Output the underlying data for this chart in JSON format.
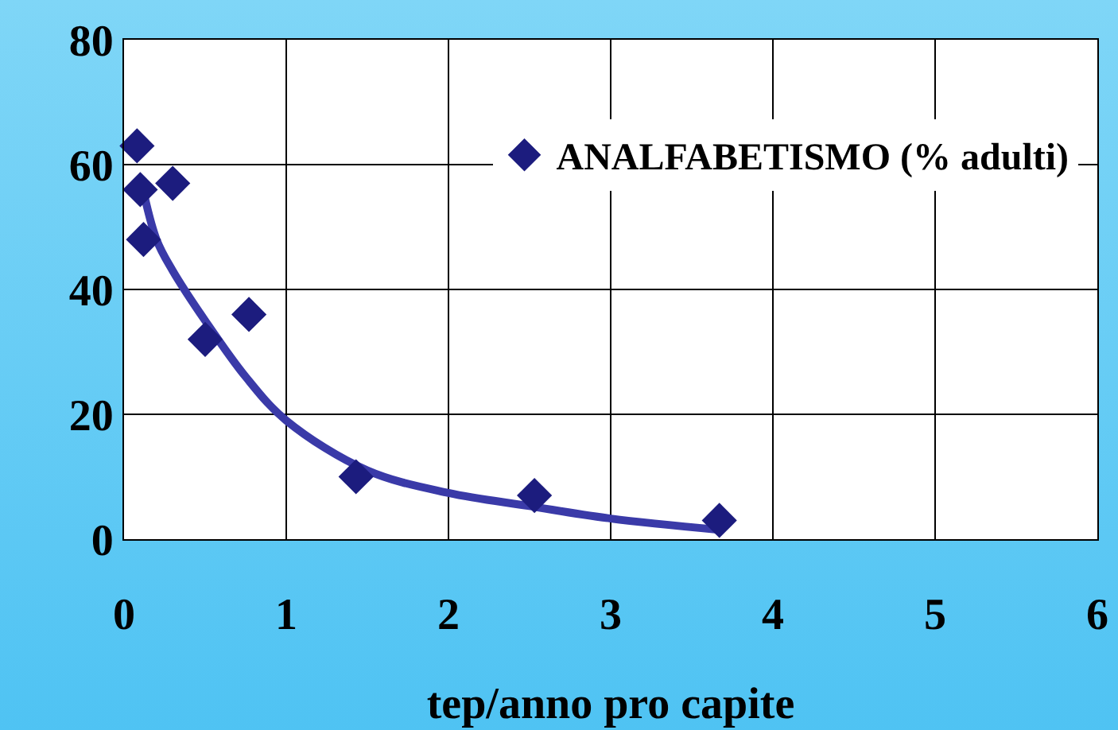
{
  "chart_data": {
    "type": "scatter",
    "xlabel": "tep/anno pro capite",
    "xlim": [
      0,
      6
    ],
    "xticks": [
      0,
      1,
      2,
      3,
      4,
      5,
      6
    ],
    "ylim": [
      0,
      80
    ],
    "yticks": [
      0,
      20,
      40,
      60,
      80
    ],
    "grid": true,
    "legend": "top right",
    "series": [
      {
        "name": "ANALFABETISMO (% adulti)",
        "marker": "diamond",
        "color": "#1c1c7e",
        "x": [
          0.08,
          0.1,
          0.12,
          0.3,
          0.5,
          0.77,
          1.43,
          2.53,
          3.67
        ],
        "values": [
          63,
          56,
          48,
          57,
          32,
          36,
          10,
          7,
          3
        ]
      },
      {
        "type": "line",
        "color": "#3a3aa8",
        "x": [
          0.1,
          0.2,
          0.3,
          0.5,
          0.75,
          1,
          1.5,
          2,
          2.5,
          3,
          3.67
        ],
        "values": [
          58,
          48,
          43,
          35,
          26,
          19,
          11,
          7.4,
          5.3,
          3.3,
          1.5
        ]
      }
    ]
  }
}
